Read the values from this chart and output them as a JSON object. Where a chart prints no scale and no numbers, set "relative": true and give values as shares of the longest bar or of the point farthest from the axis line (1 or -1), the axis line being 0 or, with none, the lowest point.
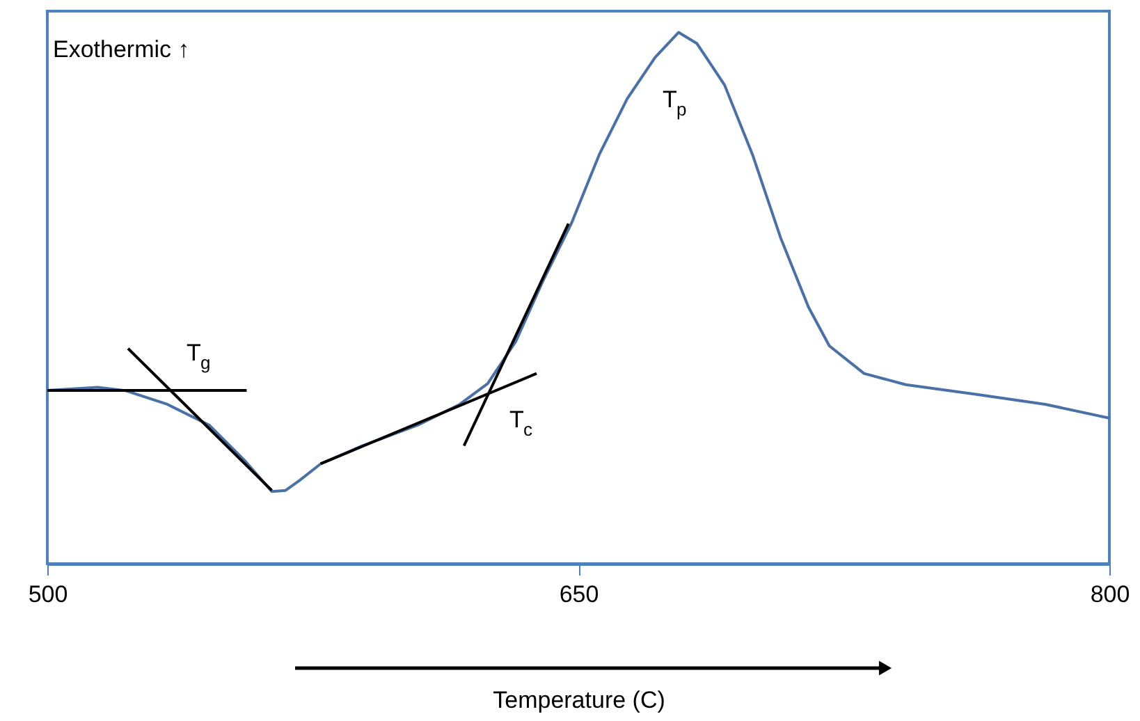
{
  "chart_data": {
    "type": "line",
    "relative": true,
    "xlabel": "Temperature (C)",
    "xlim": [
      500,
      800
    ],
    "xticks": [
      500,
      650,
      800
    ],
    "grid": false,
    "series": [
      {
        "color": "#4a70a8",
        "x": [
          500,
          514.2,
          522,
          533.9,
          545.7,
          555.5,
          563.4,
          567.3,
          571.3,
          577.2,
          589,
          604.7,
          616.5,
          624.4,
          632.3,
          640.2,
          648,
          655.9,
          663.8,
          671.7,
          678.3,
          683.5,
          691.3,
          699.2,
          707.1,
          715,
          720.9,
          730.7,
          742.5,
          762.2,
          781.9,
          800
        ],
        "values": [
          0.326,
          0.332,
          0.326,
          0.3,
          0.261,
          0.196,
          0.136,
          0.138,
          0.157,
          0.188,
          0.222,
          0.261,
          0.3,
          0.339,
          0.418,
          0.535,
          0.64,
          0.77,
          0.875,
          0.953,
          1,
          0.979,
          0.901,
          0.77,
          0.614,
          0.483,
          0.41,
          0.358,
          0.337,
          0.319,
          0.3,
          0.274
        ]
      },
      {
        "color": "#000000",
        "x": [
          500,
          556.3
        ],
        "values": [
          0.326,
          0.326
        ]
      },
      {
        "color": "#000000",
        "x": [
          522.8,
          563.4
        ],
        "values": [
          0.405,
          0.138
        ]
      },
      {
        "color": "#000000",
        "x": [
          577.2,
          638.2
        ],
        "values": [
          0.188,
          0.358
        ]
      },
      {
        "color": "#000000",
        "x": [
          617.7,
          647.2
        ],
        "values": [
          0.222,
          0.64
        ]
      }
    ],
    "annotations": [
      "Exothermic ↑",
      "T$_{g}$",
      "T$_{c}$",
      "T$_{p}$"
    ]
  }
}
